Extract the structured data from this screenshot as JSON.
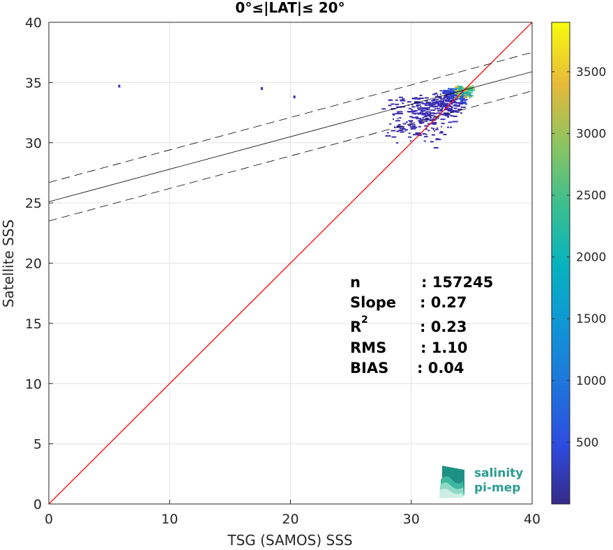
{
  "chart_data": {
    "type": "heatmap",
    "title": "0°≤|LAT|≤ 20°",
    "xlabel": "TSG (SAMOS) SSS",
    "ylabel": "Satellite SSS",
    "xlim": [
      0,
      40
    ],
    "ylim": [
      0,
      40
    ],
    "xticks": [
      "0",
      "10",
      "20",
      "30",
      "40"
    ],
    "yticks": [
      "0",
      "5",
      "10",
      "15",
      "20",
      "25",
      "30",
      "35",
      "40"
    ],
    "grid": true,
    "colorbar": {
      "range": [
        0,
        3900
      ],
      "ticks": [
        "500",
        "1000",
        "1500",
        "2000",
        "2500",
        "3000",
        "3500"
      ],
      "colormap": "parula"
    },
    "reference_line": {
      "slope": 1,
      "intercept": 0,
      "color": "#ff0000"
    },
    "fit_line": {
      "slope": 0.27,
      "intercept": 25.1,
      "offset": 1.6
    },
    "density_region": {
      "x_range": [
        27.5,
        36.5
      ],
      "y_range": [
        29,
        35.6
      ],
      "peak": [
        34.3,
        34.3
      ]
    },
    "outliers": [
      {
        "x": 5.8,
        "y": 34.7
      },
      {
        "x": 17.6,
        "y": 34.5
      },
      {
        "x": 20.3,
        "y": 33.8
      }
    ],
    "stats": {
      "n": {
        "label": "n",
        "value": ": 157245"
      },
      "slope": {
        "label": "Slope",
        "value": ": 0.27"
      },
      "r2": {
        "label": "R",
        "sup": "2",
        "value": ": 0.23"
      },
      "rms": {
        "label": "RMS",
        "value": ": 1.10"
      },
      "bias": {
        "label": "BIAS",
        "value": ": 0.04"
      }
    }
  },
  "logo": {
    "line1": "salinity",
    "line2": "pi-mep"
  }
}
